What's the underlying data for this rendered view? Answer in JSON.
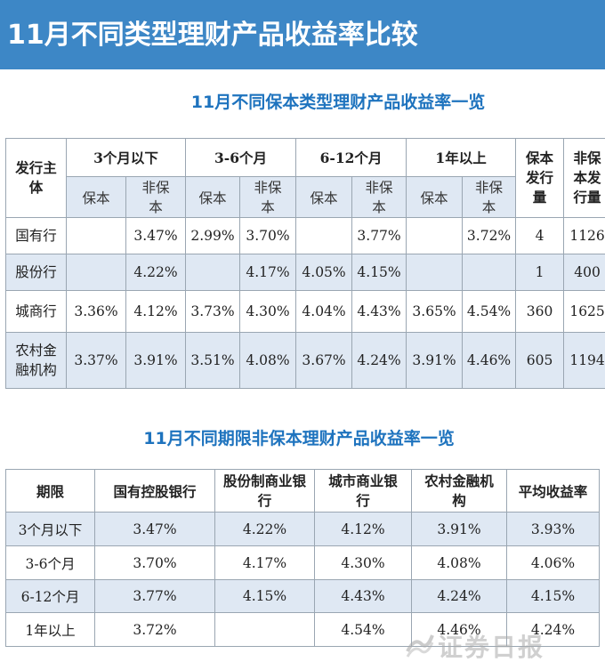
{
  "banner_title": "11月不同类型理财产品收益率比较",
  "table1": {
    "title": "11月不同保本类型理财产品收益率一览",
    "issuer_header": "发行主体",
    "period_headers": [
      "3个月以下",
      "3-6个月",
      "6-12个月",
      "1年以上"
    ],
    "guaranteed_count_header": "保本发行量",
    "nonguaranteed_count_header": "非保本发行量",
    "sub_headers": {
      "guaranteed": "保本",
      "nonguaranteed": "非保本"
    },
    "rows": [
      {
        "issuer": "国有行",
        "values": [
          "",
          "3.47%",
          "2.99%",
          "3.70%",
          "",
          "3.77%",
          "",
          "3.72%"
        ],
        "guaranteed_count": "4",
        "nonguaranteed_count": "1126"
      },
      {
        "issuer": "股份行",
        "values": [
          "",
          "4.22%",
          "",
          "4.17%",
          "4.05%",
          "4.15%",
          "",
          ""
        ],
        "guaranteed_count": "1",
        "nonguaranteed_count": "400"
      },
      {
        "issuer": "城商行",
        "values": [
          "3.36%",
          "4.12%",
          "3.73%",
          "4.30%",
          "4.04%",
          "4.43%",
          "3.65%",
          "4.54%"
        ],
        "guaranteed_count": "360",
        "nonguaranteed_count": "1625"
      },
      {
        "issuer": "农村金融机构",
        "values": [
          "3.37%",
          "3.91%",
          "3.51%",
          "4.08%",
          "3.67%",
          "4.24%",
          "3.91%",
          "4.46%"
        ],
        "guaranteed_count": "605",
        "nonguaranteed_count": "1194"
      }
    ]
  },
  "table2": {
    "title": "11月不同期限非保本理财产品收益率一览",
    "headers": [
      "期限",
      "国有控股银行",
      "股份制商业银行",
      "城市商业银行",
      "农村金融机构",
      "平均收益率"
    ],
    "rows": [
      [
        "3个月以下",
        "3.47%",
        "4.22%",
        "4.12%",
        "3.91%",
        "3.93%"
      ],
      [
        "3-6个月",
        "3.70%",
        "4.17%",
        "4.30%",
        "4.08%",
        "4.06%"
      ],
      [
        "6-12个月",
        "3.77%",
        "4.15%",
        "4.43%",
        "4.24%",
        "4.15%"
      ],
      [
        "1年以上",
        "3.72%",
        "",
        "4.54%",
        "4.46%",
        "4.24%"
      ]
    ]
  },
  "watermark": {
    "text": "证券日报",
    "icon": "wave-logo-icon"
  }
}
